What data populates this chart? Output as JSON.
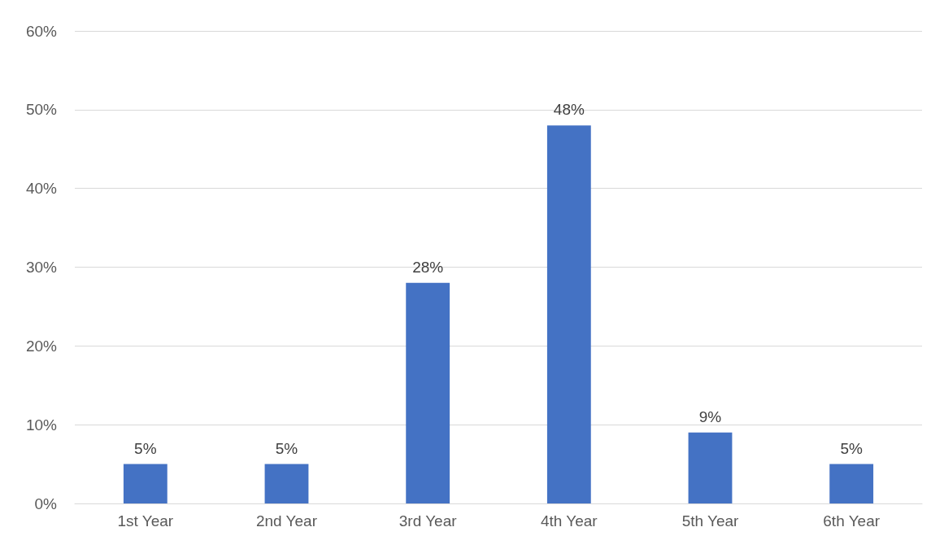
{
  "chart_data": {
    "type": "bar",
    "categories": [
      "1st Year",
      "2nd Year",
      "3rd Year",
      "4th Year",
      "5th Year",
      "6th Year"
    ],
    "values": [
      5,
      5,
      28,
      48,
      9,
      5
    ],
    "value_labels": [
      "5%",
      "5%",
      "28%",
      "48%",
      "9%",
      "5%"
    ],
    "color": "#4472c4",
    "ylim": [
      0,
      60
    ],
    "yticks": [
      {
        "value": 0,
        "label": "0%"
      },
      {
        "value": 10,
        "label": "10%"
      },
      {
        "value": 20,
        "label": "20%"
      },
      {
        "value": 30,
        "label": "30%"
      },
      {
        "value": 40,
        "label": "40%"
      },
      {
        "value": 50,
        "label": "50%"
      },
      {
        "value": 60,
        "label": "60%"
      }
    ],
    "grid": "y"
  }
}
